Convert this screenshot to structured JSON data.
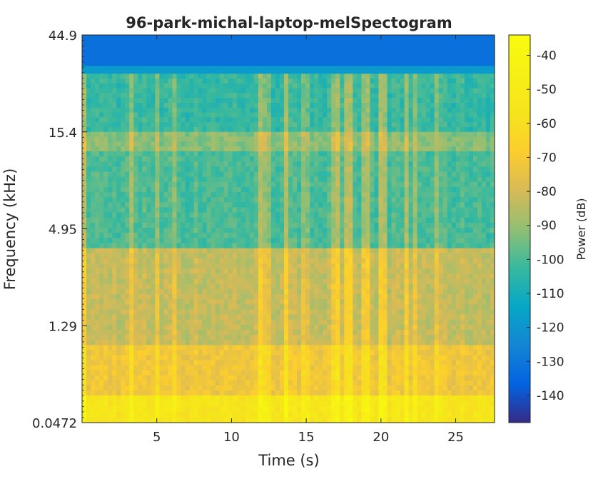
{
  "chart_data": {
    "type": "heatmap",
    "title": "96-park-michal-laptop-melSpectogram",
    "xlabel": "Time (s)",
    "ylabel": "Frequency (kHz)",
    "xlim": [
      0,
      27.6
    ],
    "x_ticks": [
      5,
      10,
      15,
      20,
      25
    ],
    "x_tick_labels": [
      "5",
      "10",
      "15",
      "20",
      "25"
    ],
    "y_scale": "mel",
    "y_tick_labels": [
      "0.0472",
      "1.29",
      "4.95",
      "15.4",
      "44.9"
    ],
    "colorbar": {
      "label": "Power (dB)",
      "range": [
        -148,
        -34
      ],
      "ticks": [
        -40,
        -50,
        -60,
        -70,
        -80,
        -90,
        -100,
        -110,
        -120,
        -130,
        -140
      ],
      "tick_labels": [
        "-40",
        "-50",
        "-60",
        "-70",
        "-80",
        "-90",
        "-100",
        "-110",
        "-120",
        "-130",
        "-140"
      ],
      "colormap": "parula"
    },
    "band_levels_db": [
      {
        "from_frac": 0.0,
        "to_frac": 0.08,
        "power_db": -132
      },
      {
        "from_frac": 0.08,
        "to_frac": 0.1,
        "power_db": -118
      },
      {
        "from_frac": 0.1,
        "to_frac": 0.25,
        "power_db": -103
      },
      {
        "from_frac": 0.25,
        "to_frac": 0.3,
        "power_db": -92
      },
      {
        "from_frac": 0.3,
        "to_frac": 0.55,
        "power_db": -100
      },
      {
        "from_frac": 0.55,
        "to_frac": 0.8,
        "power_db": -83
      },
      {
        "from_frac": 0.8,
        "to_frac": 0.93,
        "power_db": -72
      },
      {
        "from_frac": 0.93,
        "to_frac": 1.0,
        "power_db": -55
      }
    ],
    "grid": false
  }
}
